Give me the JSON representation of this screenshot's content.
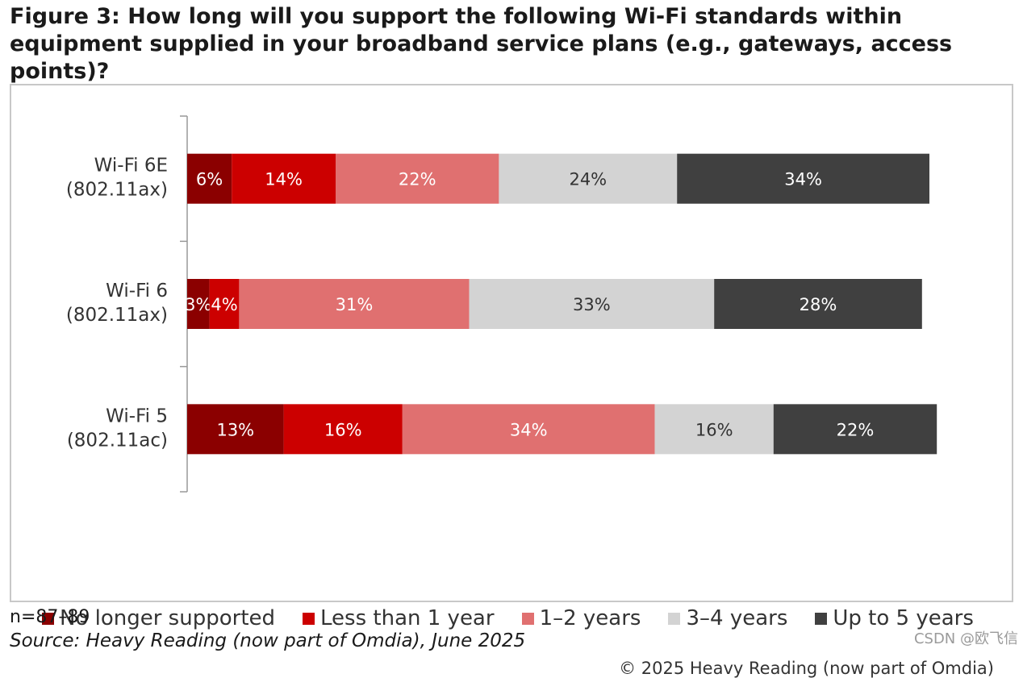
{
  "title": "Figure 3: How long will you support the following Wi-Fi standards within equipment supplied in your broadband service plans (e.g., gateways, access points)?",
  "copyright": "© 2025 Heavy Reading (now part of Omdia)",
  "footnote_n": "n=87–89",
  "source": "Source: Heavy Reading (now part of Omdia), June 2025",
  "watermark": "CSDN @欧飞信",
  "chart_data": {
    "type": "bar",
    "orientation": "horizontal",
    "stacked": true,
    "percent": true,
    "categories": [
      [
        "Wi-Fi 6E",
        "(802.11ax)"
      ],
      [
        "Wi-Fi 6",
        "(802.11ax)"
      ],
      [
        "Wi-Fi 5",
        "(802.11ac)"
      ]
    ],
    "series": [
      {
        "name": "No longer supported",
        "color": "#8b0000",
        "label_color": "#ffffff",
        "values": [
          6,
          3,
          13
        ]
      },
      {
        "name": "Less than 1 year",
        "color": "#cc0000",
        "label_color": "#ffffff",
        "values": [
          14,
          4,
          16
        ]
      },
      {
        "name": "1–2 years",
        "color": "#e07070",
        "label_color": "#ffffff",
        "values": [
          22,
          31,
          34
        ]
      },
      {
        "name": "3–4 years",
        "color": "#d3d3d3",
        "label_color": "#333333",
        "values": [
          24,
          33,
          16
        ]
      },
      {
        "name": "Up to 5 years",
        "color": "#404040",
        "label_color": "#ffffff",
        "values": [
          34,
          28,
          22
        ]
      }
    ],
    "legend_position": "bottom",
    "grid": false
  }
}
